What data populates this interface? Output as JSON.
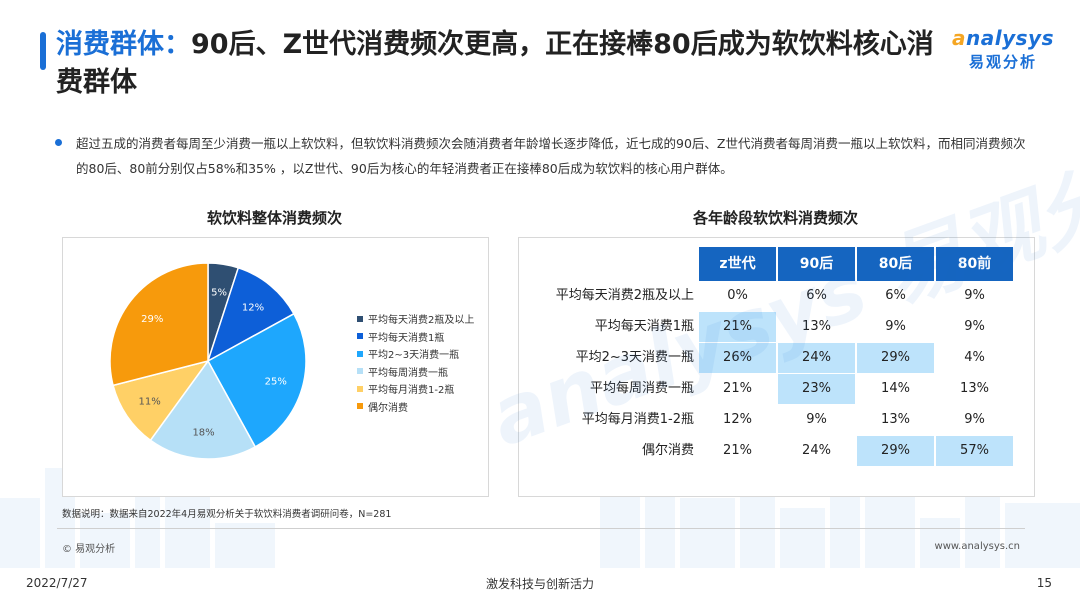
{
  "header": {
    "title_highlight": "消费群体：",
    "title_rest": "90后、Z世代消费频次更高，正在接棒80后成为软饮料核心消费群体",
    "logo_en_accent": "a",
    "logo_en_rest": "nalysys",
    "logo_cn": "易观分析"
  },
  "summary": "超过五成的消费者每周至少消费一瓶以上软饮料，但软饮料消费频次会随消费者年龄增长逐步降低，近七成的90后、Z世代消费者每周消费一瓶以上软饮料，而相同消费频次的80后、80前分别仅占58%和35% ，以Z世代、90后为核心的年轻消费者正在接棒80后成为软饮料的核心用户群体。",
  "chart_data": [
    {
      "type": "pie",
      "title": "软饮料整体消费频次",
      "categories": [
        "平均每天消费2瓶及以上",
        "平均每天消费1瓶",
        "平均2~3天消费一瓶",
        "平均每周消费一瓶",
        "平均每月消费1-2瓶",
        "偶尔消费"
      ],
      "values": [
        5,
        12,
        25,
        18,
        11,
        29
      ],
      "labels": [
        "5%",
        "12%",
        "25%",
        "18%",
        "11%",
        "29%"
      ],
      "colors": [
        "#2f4f72",
        "#0d5fd8",
        "#1ea7fd",
        "#b6e0f7",
        "#ffd066",
        "#f79a0c"
      ],
      "legend": "right"
    },
    {
      "type": "table",
      "title": "各年龄段软饮料消费频次",
      "columns": [
        "z世代",
        "90后",
        "80后",
        "80前"
      ],
      "rows": [
        {
          "label": "平均每天消费2瓶及以上",
          "values": [
            "0%",
            "6%",
            "6%",
            "9%"
          ],
          "highlight": [
            false,
            false,
            false,
            false
          ]
        },
        {
          "label": "平均每天消费1瓶",
          "values": [
            "21%",
            "13%",
            "9%",
            "9%"
          ],
          "highlight": [
            true,
            false,
            false,
            false
          ]
        },
        {
          "label": "平均2~3天消费一瓶",
          "values": [
            "26%",
            "24%",
            "29%",
            "4%"
          ],
          "highlight": [
            true,
            true,
            true,
            false
          ]
        },
        {
          "label": "平均每周消费一瓶",
          "values": [
            "21%",
            "23%",
            "14%",
            "13%"
          ],
          "highlight": [
            false,
            true,
            false,
            false
          ]
        },
        {
          "label": "平均每月消费1-2瓶",
          "values": [
            "12%",
            "9%",
            "13%",
            "9%"
          ],
          "highlight": [
            false,
            false,
            false,
            false
          ]
        },
        {
          "label": "偶尔消费",
          "values": [
            "21%",
            "24%",
            "29%",
            "57%"
          ],
          "highlight": [
            false,
            false,
            true,
            true
          ]
        }
      ],
      "colors": {
        "header": "#1565c0",
        "highlight": "#bde3fb"
      }
    }
  ],
  "note": "数据说明：数据来自2022年4月易观分析关于软饮料消费者调研问卷，N=281",
  "footer": {
    "copyright": "© 易观分析",
    "website": "www.analysys.cn",
    "date": "2022/7/27",
    "slogan": "激发科技与创新活力",
    "page": "15"
  }
}
